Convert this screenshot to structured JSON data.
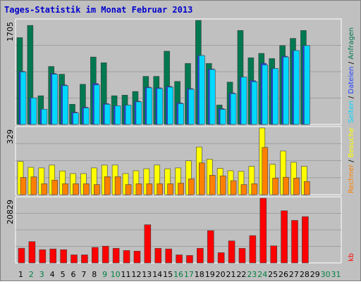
{
  "chart_data": [
    {
      "type": "bar",
      "title": "Tages-Statistik im Monat Februar 2013",
      "legend_separator": " / ",
      "ylim": [
        0,
        1705
      ],
      "yticks": [
        1705
      ],
      "series": [
        {
          "name": "Anfragen",
          "color": "#007850",
          "values": [
            1423,
            1623,
            470,
            950,
            823,
            330,
            658,
            1105,
            1011,
            470,
            480,
            540,
            788,
            788,
            1200,
            705,
            1000,
            1705,
            1000,
            318,
            694,
            1540,
            1093,
            1164,
            1080,
            1293,
            1410,
            1540,
            null,
            null,
            null
          ]
        },
        {
          "name": "Dateien",
          "color": "#2040ff",
          "values": [
            870,
            435,
            250,
            835,
            647,
            200,
            282,
            670,
            341,
            305,
            317,
            380,
            611,
            600,
            623,
            353,
            588,
            1129,
            910,
            259,
            517,
            776,
            717,
            1000,
            917,
            1117,
            1211,
            1293,
            null,
            null,
            null
          ]
        },
        {
          "name": "Seiten",
          "color": "#00d8ff",
          "values": [
            860,
            435,
            250,
            823,
            635,
            188,
            270,
            647,
            330,
            306,
            317,
            370,
            600,
            588,
            611,
            341,
            576,
            1129,
            900,
            247,
            505,
            776,
            700,
            976,
            917,
            1105,
            1211,
            1293,
            null,
            null,
            null
          ]
        }
      ]
    },
    {
      "type": "bar",
      "ylim": [
        0,
        329
      ],
      "yticks": [
        329
      ],
      "series": [
        {
          "name": "Besuche",
          "color": "#ffff00",
          "values": [
            164,
            135,
            132,
            146,
            117,
            104,
            104,
            132,
            146,
            146,
            104,
            118,
            128,
            146,
            128,
            132,
            167,
            235,
            175,
            130,
            118,
            115,
            140,
            329,
            150,
            215,
            160,
            140,
            null,
            null,
            null
          ]
        },
        {
          "name": "Rechner",
          "color": "#ff8000",
          "values": [
            85,
            88,
            54,
            72,
            54,
            54,
            54,
            50,
            89,
            89,
            50,
            54,
            54,
            54,
            54,
            57,
            78,
            157,
            96,
            93,
            69,
            50,
            54,
            233,
            82,
            86,
            82,
            65,
            null,
            null,
            null
          ]
        }
      ]
    },
    {
      "type": "bar",
      "ylim": [
        0,
        20829
      ],
      "yticks": [
        20829
      ],
      "categories": [
        "1",
        "2",
        "3",
        "4",
        "5",
        "6",
        "7",
        "8",
        "9",
        "10",
        "11",
        "12",
        "13",
        "14",
        "15",
        "16",
        "17",
        "18",
        "19",
        "20",
        "21",
        "22",
        "23",
        "24",
        "25",
        "26",
        "27",
        "28",
        "29",
        "30",
        "31"
      ],
      "weekend": [
        false,
        true,
        true,
        false,
        false,
        false,
        false,
        false,
        true,
        true,
        false,
        false,
        false,
        false,
        false,
        true,
        true,
        false,
        false,
        false,
        false,
        false,
        true,
        true,
        false,
        false,
        false,
        false,
        false,
        true,
        true
      ],
      "weekend_color": "#008040",
      "weekday_color": "#000000",
      "series": [
        {
          "name": "kb",
          "color": "#ff0000",
          "values": [
            4733,
            6863,
            4260,
            4500,
            4260,
            2600,
            2600,
            5000,
            5400,
            4700,
            4000,
            3800,
            12300,
            4700,
            4500,
            2600,
            2400,
            4700,
            10400,
            3300,
            7100,
            4700,
            8800,
            20829,
            5500,
            16800,
            13700,
            14900,
            null,
            null,
            null
          ]
        }
      ]
    }
  ]
}
